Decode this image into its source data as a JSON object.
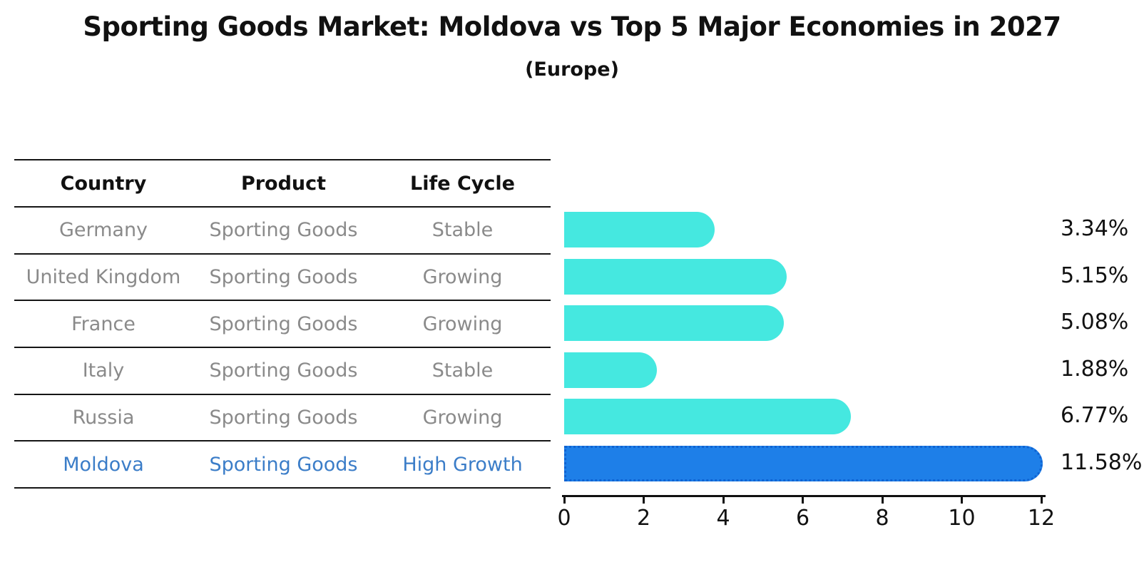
{
  "title": "Sporting Goods Market: Moldova vs Top 5 Major Economies in 2027",
  "subtitle": "(Europe)",
  "table": {
    "headers": [
      "Country",
      "Product",
      "Life Cycle"
    ],
    "rows": [
      {
        "country": "Germany",
        "product": "Sporting Goods",
        "life_cycle": "Stable",
        "highlight": false
      },
      {
        "country": "United Kingdom",
        "product": "Sporting Goods",
        "life_cycle": "Growing",
        "highlight": false
      },
      {
        "country": "France",
        "product": "Sporting Goods",
        "life_cycle": "Growing",
        "highlight": false
      },
      {
        "country": "Italy",
        "product": "Sporting Goods",
        "life_cycle": "Stable",
        "highlight": false
      },
      {
        "country": "Russia",
        "product": "Sporting Goods",
        "life_cycle": "Growing",
        "highlight": false
      },
      {
        "country": "Moldova",
        "product": "Sporting Goods",
        "life_cycle": "High Growth",
        "highlight": true
      }
    ]
  },
  "chart_data": {
    "type": "bar",
    "orientation": "horizontal",
    "title": "Sporting Goods Market: Moldova vs Top 5 Major Economies in 2027",
    "subtitle": "(Europe)",
    "categories": [
      "Germany",
      "United Kingdom",
      "France",
      "Italy",
      "Russia",
      "Moldova"
    ],
    "values": [
      3.34,
      5.15,
      5.08,
      1.88,
      6.77,
      11.58
    ],
    "value_labels": [
      "3.34%",
      "5.15%",
      "5.08%",
      "1.88%",
      "6.77%",
      "11.58%"
    ],
    "xlim": [
      0,
      12
    ],
    "xticks": [
      0,
      2,
      4,
      6,
      8,
      10,
      12
    ],
    "grid": false,
    "legend": false,
    "highlight_index": 5
  },
  "colors": {
    "bar_default": "#45e8e0",
    "bar_highlight": "#1e7fe8",
    "bar_highlight_border": "#0f63d2",
    "text_default": "#8a8a8a",
    "text_highlight": "#3b7dc8",
    "text_heading": "#111111"
  }
}
